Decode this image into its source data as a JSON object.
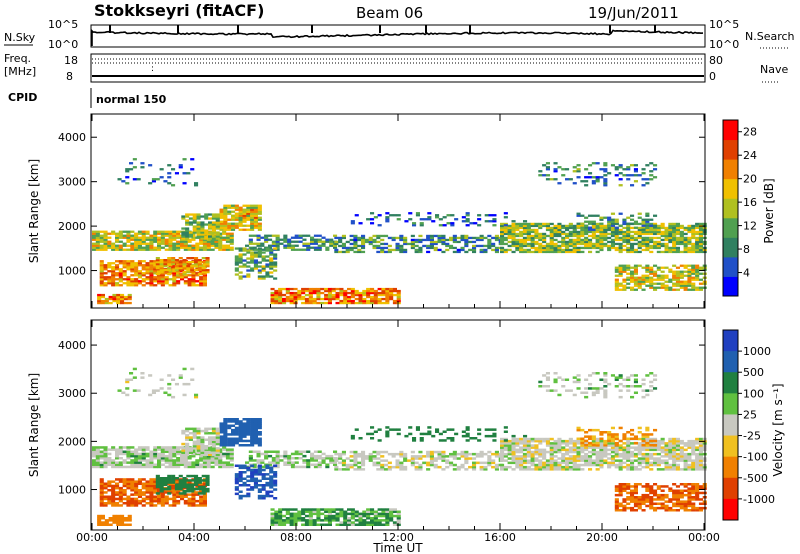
{
  "header": {
    "station": "Stokkseyri (fitACF)",
    "beam": "Beam 06",
    "date": "19/Jun/2011"
  },
  "strip_labels": {
    "nsky": "N.Sky",
    "nsky_hi": "10^5",
    "nsky_lo": "10^0",
    "nsearch": "N.Search",
    "nsearch_hi": "10^5",
    "nsearch_lo": "10^0",
    "freq": "Freq.",
    "freq_unit": "[MHz]",
    "freq_hi": "18",
    "freq_lo": "8",
    "nave": "Nave",
    "nave_hi": "80",
    "nave_lo": "0",
    "cpid": "CPID",
    "cpid_value": "normal 150"
  },
  "chart_data": [
    {
      "type": "heatmap",
      "name": "power",
      "xlabel": "",
      "ylabel": "Slant Range [km]",
      "x_ticks": [
        "00:00",
        "04:00",
        "08:00",
        "12:00",
        "16:00",
        "20:00",
        "00:00"
      ],
      "y_ticks": [
        1000,
        2000,
        3000,
        4000
      ],
      "xlim_hours": [
        0,
        24
      ],
      "ylim_km": [
        180,
        4500
      ],
      "colorbar": {
        "label": "Power [dB]",
        "ticks": [
          4,
          8,
          12,
          16,
          20,
          24,
          28
        ],
        "range": [
          0,
          30
        ],
        "colors": [
          "#0000ff",
          "#2050c8",
          "#308060",
          "#50a050",
          "#b0c020",
          "#f0c000",
          "#f08000",
          "#e04000",
          "#ff0000"
        ]
      }
    },
    {
      "type": "heatmap",
      "name": "velocity",
      "xlabel": "Time UT",
      "ylabel": "Slant Range [km]",
      "x_ticks": [
        "00:00",
        "04:00",
        "08:00",
        "12:00",
        "16:00",
        "20:00",
        "00:00"
      ],
      "y_ticks": [
        1000,
        2000,
        3000,
        4000
      ],
      "xlim_hours": [
        0,
        24
      ],
      "ylim_km": [
        180,
        4500
      ],
      "colorbar": {
        "label": "Velocity [m s⁻¹]",
        "ticks": [
          "1000",
          "500",
          "100",
          "25",
          "-25",
          "-100",
          "-500",
          "-1000"
        ],
        "colors": [
          "#2040c0",
          "#2060b0",
          "#208040",
          "#60c040",
          "#c8c8c0",
          "#f0c020",
          "#f08000",
          "#e04000",
          "#ff0000"
        ]
      }
    }
  ],
  "echo_regions": [
    {
      "t0": 0.0,
      "t1": 5.5,
      "r0": 1450,
      "r1": 1900,
      "p": 16,
      "v": 25,
      "density": 0.85
    },
    {
      "t0": 5.0,
      "t1": 6.6,
      "r0": 1900,
      "r1": 2450,
      "p": 18,
      "v": 500,
      "density": 0.8
    },
    {
      "t0": 3.5,
      "t1": 5.0,
      "r0": 1700,
      "r1": 2250,
      "p": 14,
      "v": 10,
      "density": 0.7
    },
    {
      "t0": 6.0,
      "t1": 9.5,
      "r0": 1450,
      "r1": 1800,
      "p": 10,
      "v": 25,
      "density": 0.6
    },
    {
      "t0": 9.5,
      "t1": 16.0,
      "r0": 1400,
      "r1": 1800,
      "p": 9,
      "v": 0,
      "density": 0.55
    },
    {
      "t0": 16.0,
      "t1": 24.0,
      "r0": 1400,
      "r1": 2050,
      "p": 14,
      "v": 0,
      "density": 0.8
    },
    {
      "t0": 0.3,
      "t1": 4.5,
      "r0": 650,
      "r1": 1200,
      "p": 22,
      "v": -300,
      "density": 0.8
    },
    {
      "t0": 2.5,
      "t1": 4.5,
      "r0": 900,
      "r1": 1300,
      "p": 20,
      "v": 150,
      "density": 0.7
    },
    {
      "t0": 5.6,
      "t1": 7.2,
      "r0": 800,
      "r1": 1500,
      "p": 12,
      "v": 600,
      "density": 0.55
    },
    {
      "t0": 7.0,
      "t1": 12.0,
      "r0": 250,
      "r1": 600,
      "p": 22,
      "v": 60,
      "density": 0.8
    },
    {
      "t0": 0.2,
      "t1": 1.5,
      "r0": 250,
      "r1": 450,
      "p": 22,
      "v": -150,
      "density": 0.8
    },
    {
      "t0": 20.5,
      "t1": 24.0,
      "r0": 550,
      "r1": 1100,
      "p": 16,
      "v": -300,
      "density": 0.65
    },
    {
      "t0": 19.0,
      "t1": 22.0,
      "r0": 1900,
      "r1": 2300,
      "p": 10,
      "v": -80,
      "density": 0.35
    },
    {
      "t0": 17.5,
      "t1": 22.0,
      "r0": 2900,
      "r1": 3400,
      "p": 8,
      "v": 25,
      "density": 0.25
    },
    {
      "t0": 1.0,
      "t1": 4.0,
      "r0": 2900,
      "r1": 3500,
      "p": 6,
      "v": 10,
      "density": 0.12
    },
    {
      "t0": 10.0,
      "t1": 17.0,
      "r0": 2000,
      "r1": 2300,
      "p": 6,
      "v": 200,
      "density": 0.18
    }
  ]
}
